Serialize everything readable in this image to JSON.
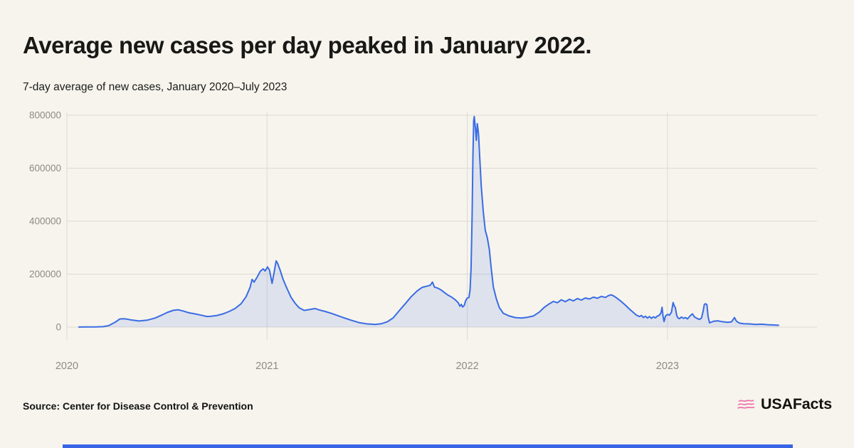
{
  "header": {
    "title": "Average new cases per day peaked in January 2022.",
    "subtitle": "7-day average of new cases, January 2020–July 2023"
  },
  "footer": {
    "source": "Source: Center for Disease Control & Prevention",
    "brand": "USAFacts"
  },
  "colors": {
    "background": "#F6F4ED",
    "line": "#3A6CE4",
    "area_fill": "rgba(58,108,228,0.13)",
    "gridline": "#DDDAD3",
    "axis_text": "#8D8B84",
    "brand_pink": "#F06EA9",
    "accent_bar": "#3A64E6"
  },
  "chart_data": {
    "type": "area",
    "title": "Average new cases per day peaked in January 2022.",
    "subtitle": "7-day average of new cases, January 2020–July 2023",
    "xlabel": "",
    "ylabel": "",
    "grid": true,
    "legend": "none",
    "ylim": [
      0,
      800000
    ],
    "x_domain": [
      2020.0,
      2023.6
    ],
    "x_ticks": [
      {
        "value": 2020,
        "label": "2020"
      },
      {
        "value": 2021,
        "label": "2021"
      },
      {
        "value": 2022,
        "label": "2022"
      },
      {
        "value": 2023,
        "label": "2023"
      }
    ],
    "y_ticks": [
      {
        "value": 0,
        "label": "0"
      },
      {
        "value": 200000,
        "label": "200000"
      },
      {
        "value": 400000,
        "label": "400000"
      },
      {
        "value": 600000,
        "label": "600000"
      },
      {
        "value": 800000,
        "label": "800000"
      }
    ],
    "series": [
      {
        "name": "7-day average of new cases",
        "color": "#3A6CE4",
        "points": [
          [
            2020.06,
            300
          ],
          [
            2020.1,
            700
          ],
          [
            2020.14,
            900
          ],
          [
            2020.18,
            1500
          ],
          [
            2020.21,
            6000
          ],
          [
            2020.24,
            18000
          ],
          [
            2020.265,
            31000
          ],
          [
            2020.29,
            31500
          ],
          [
            2020.32,
            27000
          ],
          [
            2020.36,
            23000
          ],
          [
            2020.4,
            26000
          ],
          [
            2020.44,
            34000
          ],
          [
            2020.47,
            44000
          ],
          [
            2020.5,
            55000
          ],
          [
            2020.53,
            63000
          ],
          [
            2020.555,
            65500
          ],
          [
            2020.58,
            61000
          ],
          [
            2020.61,
            54000
          ],
          [
            2020.64,
            50000
          ],
          [
            2020.67,
            45000
          ],
          [
            2020.7,
            40000
          ],
          [
            2020.72,
            41000
          ],
          [
            2020.75,
            44000
          ],
          [
            2020.78,
            50000
          ],
          [
            2020.81,
            59000
          ],
          [
            2020.84,
            70000
          ],
          [
            2020.87,
            88000
          ],
          [
            2020.895,
            115000
          ],
          [
            2020.915,
            150000
          ],
          [
            2020.925,
            180000
          ],
          [
            2020.935,
            170000
          ],
          [
            2020.95,
            188000
          ],
          [
            2020.965,
            210000
          ],
          [
            2020.98,
            220000
          ],
          [
            2020.99,
            212000
          ],
          [
            2021.002,
            227000
          ],
          [
            2021.012,
            215000
          ],
          [
            2021.025,
            165000
          ],
          [
            2021.035,
            205000
          ],
          [
            2021.045,
            250000
          ],
          [
            2021.052,
            242000
          ],
          [
            2021.065,
            215000
          ],
          [
            2021.08,
            180000
          ],
          [
            2021.1,
            145000
          ],
          [
            2021.12,
            112000
          ],
          [
            2021.14,
            90000
          ],
          [
            2021.16,
            73000
          ],
          [
            2021.185,
            63000
          ],
          [
            2021.21,
            66000
          ],
          [
            2021.24,
            70000
          ],
          [
            2021.265,
            64000
          ],
          [
            2021.29,
            59000
          ],
          [
            2021.32,
            52000
          ],
          [
            2021.35,
            44000
          ],
          [
            2021.38,
            36000
          ],
          [
            2021.42,
            26000
          ],
          [
            2021.46,
            17000
          ],
          [
            2021.5,
            12000
          ],
          [
            2021.54,
            10000
          ],
          [
            2021.57,
            12500
          ],
          [
            2021.6,
            20000
          ],
          [
            2021.63,
            35000
          ],
          [
            2021.66,
            62000
          ],
          [
            2021.69,
            88000
          ],
          [
            2021.72,
            115000
          ],
          [
            2021.75,
            137000
          ],
          [
            2021.775,
            150000
          ],
          [
            2021.8,
            155000
          ],
          [
            2021.815,
            158000
          ],
          [
            2021.826,
            170000
          ],
          [
            2021.836,
            151000
          ],
          [
            2021.85,
            148000
          ],
          [
            2021.87,
            140000
          ],
          [
            2021.89,
            128000
          ],
          [
            2021.905,
            120000
          ],
          [
            2021.92,
            114000
          ],
          [
            2021.94,
            103000
          ],
          [
            2021.955,
            92000
          ],
          [
            2021.963,
            79000
          ],
          [
            2021.97,
            86000
          ],
          [
            2021.977,
            76000
          ],
          [
            2021.985,
            82000
          ],
          [
            2021.992,
            100000
          ],
          [
            2022.0,
            110000
          ],
          [
            2022.008,
            112000
          ],
          [
            2022.014,
            140000
          ],
          [
            2022.019,
            220000
          ],
          [
            2022.024,
            420000
          ],
          [
            2022.028,
            640000
          ],
          [
            2022.032,
            780000
          ],
          [
            2022.035,
            795000
          ],
          [
            2022.04,
            755000
          ],
          [
            2022.045,
            705000
          ],
          [
            2022.05,
            768000
          ],
          [
            2022.056,
            730000
          ],
          [
            2022.062,
            645000
          ],
          [
            2022.07,
            530000
          ],
          [
            2022.08,
            435000
          ],
          [
            2022.09,
            365000
          ],
          [
            2022.1,
            338000
          ],
          [
            2022.11,
            295000
          ],
          [
            2022.12,
            218000
          ],
          [
            2022.13,
            152000
          ],
          [
            2022.145,
            107000
          ],
          [
            2022.16,
            74000
          ],
          [
            2022.18,
            52000
          ],
          [
            2022.21,
            42000
          ],
          [
            2022.24,
            36000
          ],
          [
            2022.27,
            34000
          ],
          [
            2022.3,
            37000
          ],
          [
            2022.33,
            42000
          ],
          [
            2022.36,
            57000
          ],
          [
            2022.385,
            75000
          ],
          [
            2022.41,
            88000
          ],
          [
            2022.43,
            97000
          ],
          [
            2022.45,
            92000
          ],
          [
            2022.47,
            103000
          ],
          [
            2022.49,
            96000
          ],
          [
            2022.51,
            105000
          ],
          [
            2022.53,
            99000
          ],
          [
            2022.55,
            108000
          ],
          [
            2022.57,
            102000
          ],
          [
            2022.59,
            110000
          ],
          [
            2022.61,
            106000
          ],
          [
            2022.63,
            113000
          ],
          [
            2022.65,
            109000
          ],
          [
            2022.67,
            116000
          ],
          [
            2022.69,
            112000
          ],
          [
            2022.705,
            119000
          ],
          [
            2022.72,
            122000
          ],
          [
            2022.735,
            116000
          ],
          [
            2022.75,
            108000
          ],
          [
            2022.77,
            96000
          ],
          [
            2022.79,
            83000
          ],
          [
            2022.81,
            68000
          ],
          [
            2022.83,
            55000
          ],
          [
            2022.845,
            45000
          ],
          [
            2022.86,
            40000
          ],
          [
            2022.87,
            44000
          ],
          [
            2022.88,
            36000
          ],
          [
            2022.89,
            41000
          ],
          [
            2022.9,
            34000
          ],
          [
            2022.91,
            40000
          ],
          [
            2022.92,
            33000
          ],
          [
            2022.93,
            39000
          ],
          [
            2022.94,
            35000
          ],
          [
            2022.95,
            42000
          ],
          [
            2022.96,
            45000
          ],
          [
            2022.968,
            55000
          ],
          [
            2022.973,
            75000
          ],
          [
            2022.978,
            40000
          ],
          [
            2022.983,
            21000
          ],
          [
            2022.99,
            42000
          ],
          [
            2023.0,
            48000
          ],
          [
            2023.01,
            45000
          ],
          [
            2023.02,
            56000
          ],
          [
            2023.028,
            93000
          ],
          [
            2023.034,
            80000
          ],
          [
            2023.039,
            74000
          ],
          [
            2023.046,
            45000
          ],
          [
            2023.052,
            35000
          ],
          [
            2023.06,
            32000
          ],
          [
            2023.07,
            38000
          ],
          [
            2023.08,
            33000
          ],
          [
            2023.09,
            36000
          ],
          [
            2023.1,
            31000
          ],
          [
            2023.115,
            44000
          ],
          [
            2023.125,
            50000
          ],
          [
            2023.135,
            38000
          ],
          [
            2023.15,
            32000
          ],
          [
            2023.16,
            29000
          ],
          [
            2023.17,
            34000
          ],
          [
            2023.178,
            60000
          ],
          [
            2023.184,
            86000
          ],
          [
            2023.19,
            88000
          ],
          [
            2023.197,
            85000
          ],
          [
            2023.203,
            40000
          ],
          [
            2023.21,
            16000
          ],
          [
            2023.23,
            22000
          ],
          [
            2023.25,
            24000
          ],
          [
            2023.27,
            21000
          ],
          [
            2023.3,
            18000
          ],
          [
            2023.32,
            20000
          ],
          [
            2023.335,
            36000
          ],
          [
            2023.345,
            22000
          ],
          [
            2023.36,
            15000
          ],
          [
            2023.38,
            13000
          ],
          [
            2023.41,
            12000
          ],
          [
            2023.44,
            10000
          ],
          [
            2023.47,
            11000
          ],
          [
            2023.5,
            9000
          ],
          [
            2023.53,
            8000
          ],
          [
            2023.555,
            7000
          ]
        ]
      }
    ]
  }
}
